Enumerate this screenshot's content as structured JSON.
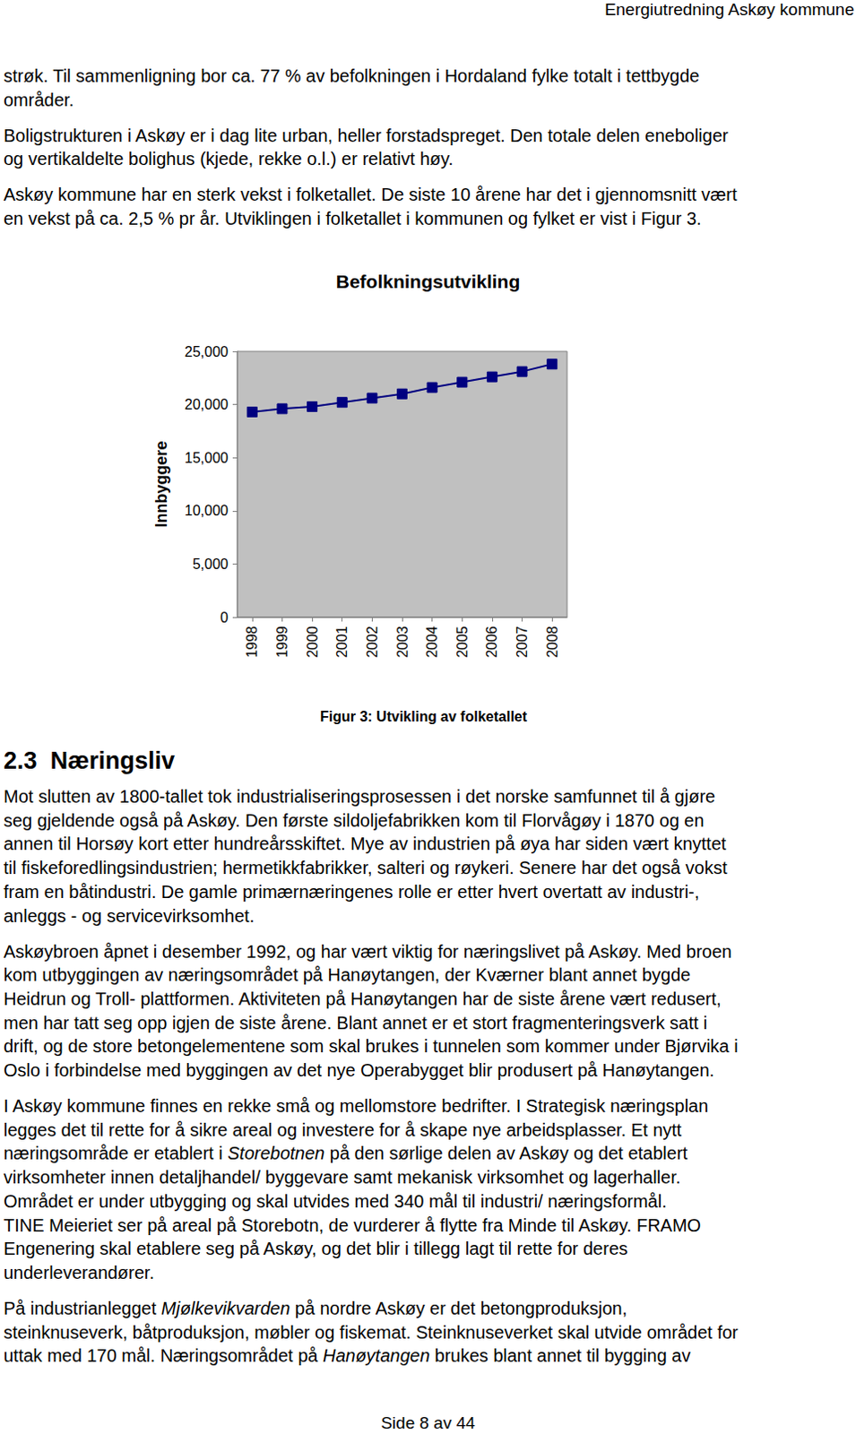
{
  "header": "Energiutredning Askøy kommune",
  "paragraphs_top": [
    [
      "strøk. Til sammenligning bor ca. 77 % av befolkningen i Hordaland fylke totalt i tettbygde",
      "områder."
    ],
    [
      "Boligstrukturen i Askøy er i dag lite urban, heller forstadspreget. Den totale delen eneboliger",
      "og vertikaldelte bolighus (kjede, rekke o.l.) er relativt høy."
    ],
    [
      "Askøy kommune har en sterk vekst i folketallet. De siste 10 årene har det i gjennomsnitt vært",
      "en vekst på ca. 2,5 % pr år. Utviklingen i folketallet i kommunen og fylket er vist i Figur 3."
    ]
  ],
  "chart_data": {
    "type": "line",
    "title": "Befolkningsutvikling",
    "y_label": "Innbyggere",
    "categories": [
      "1998",
      "1999",
      "2000",
      "2001",
      "2002",
      "2003",
      "2004",
      "2005",
      "2006",
      "2007",
      "2008"
    ],
    "values": [
      19300,
      19600,
      19800,
      20200,
      20600,
      21000,
      21600,
      22100,
      22600,
      23100,
      23800
    ],
    "color": "#000080",
    "marker": "square",
    "ylim": [
      0,
      25000
    ],
    "yticks": [
      0,
      5000,
      10000,
      15000,
      20000,
      25000
    ],
    "grid": false
  },
  "caption": "Figur 3: Utvikling av folketallet",
  "section": {
    "number": "2.3",
    "title": "Næringsliv"
  },
  "paragraphs": [
    [
      "Mot slutten av 1800-tallet tok industrialiseringsprosessen i det norske samfunnet til å gjøre",
      "seg gjeldende også på Askøy. Den første sildoljefabrikken kom til Florvågøy i 1870 og en",
      "annen til Horsøy kort etter hundreårsskiftet. Mye av industrien på øya har siden vært knyttet",
      "til fiskeforedlingsindustrien; hermetikkfabrikker, salteri og røykeri. Senere har det også vokst",
      "fram en båtindustri. De gamle primærnæringenes rolle er etter hvert overtatt av industri-,",
      "anleggs - og servicevirksomhet."
    ],
    [
      "Askøybroen åpnet i desember 1992, og har vært viktig for næringslivet på Askøy. Med broen",
      "kom utbyggingen av næringsområdet på Hanøytangen, der Kværner blant annet bygde",
      "Heidrun og Troll- plattformen. Aktiviteten på Hanøytangen har de siste årene vært redusert,",
      "men har tatt seg opp igjen de siste årene. Blant annet er et stort fragmenteringsverk satt i",
      "drift, og de store betongelementene som skal brukes i tunnelen som kommer under Bjørvika i",
      "Oslo i forbindelse med byggingen av det nye Operabygget blir produsert på Hanøytangen."
    ],
    [
      "I Askøy kommune finnes en rekke små og mellomstore bedrifter. I Strategisk næringsplan",
      "legges det til rette for å sikre areal og investere for å skape nye arbeidsplasser. Et nytt",
      [
        {
          "text": "næringsområde er etablert i ",
          "italic": false
        },
        {
          "text": "Storebotnen",
          "italic": true
        },
        {
          "text": " på den sørlige delen av Askøy og det etablert",
          "italic": false
        }
      ],
      "virksomheter innen detaljhandel/ byggevare samt mekanisk virksomhet og lagerhaller.",
      "Området er under utbygging og skal utvides med 340 mål til industri/ næringsformål.",
      "TINE Meieriet ser på areal på Storebotn, de vurderer å flytte fra Minde til Askøy. FRAMO",
      "Engenering skal etablere seg på Askøy, og det blir i tillegg lagt til rette for deres",
      "underleverandører."
    ],
    [
      [
        {
          "text": "På industrianlegget ",
          "italic": false
        },
        {
          "text": "Mjølkevikvarden",
          "italic": true
        },
        {
          "text": " på nordre Askøy er det betongproduksjon,",
          "italic": false
        }
      ],
      "steinknuseverk, båtproduksjon, møbler og fiskemat. Steinknuseverket skal utvide området for",
      [
        {
          "text": "uttak med 170 mål. Næringsområdet på ",
          "italic": false
        },
        {
          "text": "Hanøytangen",
          "italic": true
        },
        {
          "text": " brukes blant annet til bygging av",
          "italic": false
        }
      ]
    ]
  ],
  "footer": "Side 8 av 44"
}
